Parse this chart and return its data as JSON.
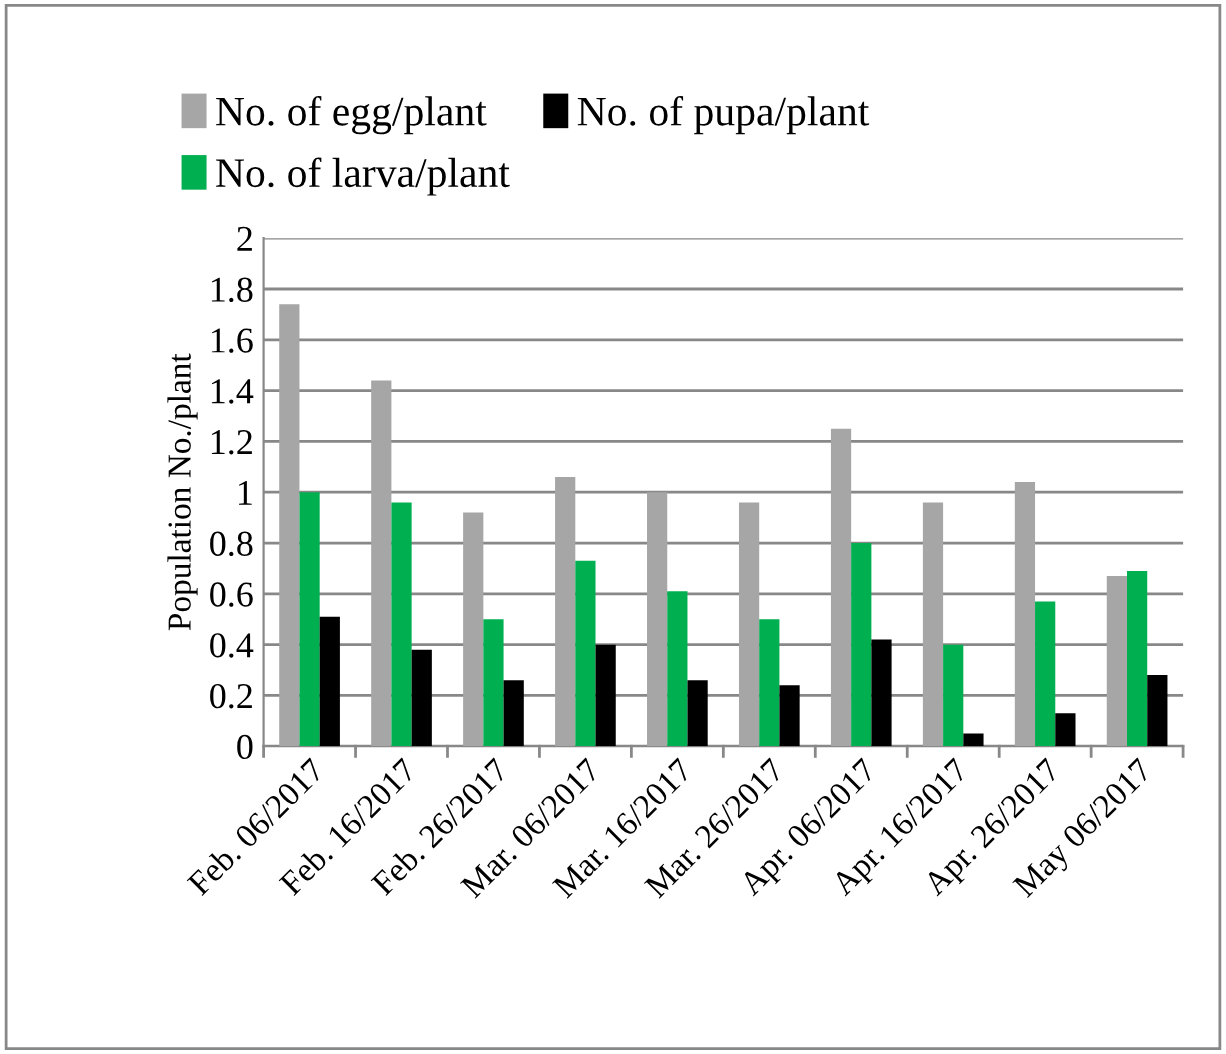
{
  "chart_data": {
    "type": "bar",
    "ylabel": "Population No./plant",
    "categories": [
      "Feb. 06/2017",
      "Feb. 16/2017",
      "Feb. 26/2017",
      "Mar. 06/2017",
      "Mar. 16/2017",
      "Mar. 26/2017",
      "Apr. 06/2017",
      "Apr. 16/2017",
      "Apr. 26/2017",
      "May 06/2017"
    ],
    "series": [
      {
        "name": "No. of egg/plant",
        "color": "#a6a6a6",
        "values": [
          1.74,
          1.44,
          0.92,
          1.06,
          1.0,
          0.96,
          1.25,
          0.96,
          1.04,
          0.67
        ]
      },
      {
        "name": "No. of larva/plant",
        "color": "#00b050",
        "values": [
          1.0,
          0.96,
          0.5,
          0.73,
          0.61,
          0.5,
          0.8,
          0.4,
          0.57,
          0.69
        ]
      },
      {
        "name": "No. of pupa/plant",
        "color": "#000000",
        "values": [
          0.51,
          0.38,
          0.26,
          0.4,
          0.26,
          0.24,
          0.42,
          0.05,
          0.13,
          0.28
        ]
      }
    ],
    "ylim": [
      0,
      2
    ],
    "yticks": [
      0,
      0.2,
      0.4,
      0.6,
      0.8,
      1,
      1.2,
      1.4,
      1.6,
      1.8,
      2
    ],
    "grid": "y",
    "legend": "top"
  }
}
